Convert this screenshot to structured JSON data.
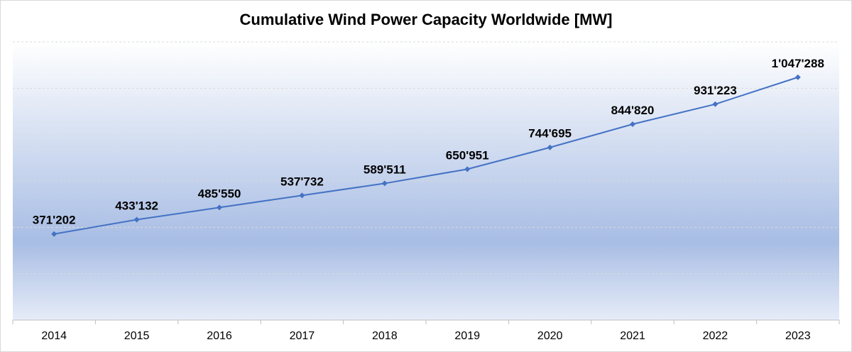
{
  "chart_data": {
    "type": "line",
    "title": "Cumulative Wind Power Capacity Worldwide [MW]",
    "xlabel": "",
    "ylabel": "",
    "categories": [
      "2014",
      "2015",
      "2016",
      "2017",
      "2018",
      "2019",
      "2020",
      "2021",
      "2022",
      "2023"
    ],
    "values": [
      371202,
      433132,
      485550,
      537732,
      589511,
      650951,
      744695,
      844820,
      931223,
      1047288
    ],
    "data_labels": [
      "371'202",
      "433'132",
      "485'550",
      "537'732",
      "589'511",
      "650'951",
      "744'695",
      "844'820",
      "931'223",
      "1'047'288"
    ],
    "ylim": [
      0,
      1200000
    ],
    "y_gridlines": [
      200000,
      400000,
      600000,
      800000,
      1000000,
      1200000
    ],
    "grid": true,
    "legend": "none",
    "colors": {
      "line": "#4472c4",
      "grid": "#d9d9d9",
      "plot_gradient_top": "#ffffff",
      "plot_gradient_mid": "#a8bde4",
      "plot_gradient_bottom": "#e6ecf8"
    }
  }
}
